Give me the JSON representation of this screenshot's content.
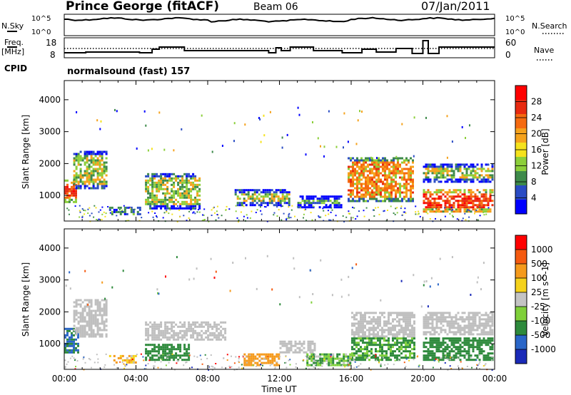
{
  "header": {
    "station": "Prince George (fitACF)",
    "beam": "Beam 06",
    "date": "07/Jan/2011"
  },
  "panels": {
    "nsky_label": "N.Sky",
    "nsearch_label": "N.Search",
    "nsky_ticks": [
      "10^5",
      "10^0"
    ],
    "nsearch_ticks": [
      "10^5",
      "10^0"
    ],
    "freq_label_line1": "Freq.",
    "freq_label_line2": "[MHz]",
    "nave_label": "Nave",
    "freq_ticks": [
      "18",
      "8"
    ],
    "nave_ticks": [
      "60",
      "0"
    ],
    "cpid_label": "CPID",
    "cpid_value": "normalsound (fast) 157"
  },
  "colors": {
    "power_scale": [
      "#0000ff",
      "#2a4cc4",
      "#3e8a4a",
      "#8ccf3a",
      "#f5e21c",
      "#f5a21c",
      "#f56a10",
      "#e82a10",
      "#ff0000"
    ],
    "velocity_scale": [
      "#1a2ab8",
      "#2a66c8",
      "#2e8a3c",
      "#7fd03a",
      "#c4c4c4",
      "#f5d21c",
      "#f59a1c",
      "#f55a10",
      "#ff0000"
    ],
    "ground_scatter": "#bfbfbf"
  },
  "chart_data": [
    {
      "type": "heatmap",
      "title": "Power",
      "xlabel": "Time UT",
      "ylabel": "Slant Range [km]",
      "x_ticks": [
        "00:00",
        "04:00",
        "08:00",
        "12:00",
        "16:00",
        "20:00",
        "00:00"
      ],
      "y_ticks": [
        "1000",
        "2000",
        "3000",
        "4000"
      ],
      "ylim": [
        200,
        4600
      ],
      "colorbar": {
        "label": "Power [dB]",
        "ticks": [
          "28",
          "24",
          "20",
          "16",
          "12",
          "8",
          "4"
        ]
      },
      "bands": [
        {
          "t": [
            0.0,
            0.7
          ],
          "r": [
            800,
            1500
          ],
          "v": 24
        },
        {
          "t": [
            0.5,
            2.3
          ],
          "r": [
            1200,
            2400
          ],
          "v": 14
        },
        {
          "t": [
            2.5,
            4.2
          ],
          "r": [
            400,
            650
          ],
          "v": 18
        },
        {
          "t": [
            4.5,
            7.5
          ],
          "r": [
            600,
            1700
          ],
          "v": 14
        },
        {
          "t": [
            9.5,
            12.5
          ],
          "r": [
            700,
            1200
          ],
          "v": 14
        },
        {
          "t": [
            13.0,
            15.5
          ],
          "r": [
            600,
            1000
          ],
          "v": 10
        },
        {
          "t": [
            15.8,
            19.5
          ],
          "r": [
            800,
            2200
          ],
          "v": 20
        },
        {
          "t": [
            20.0,
            23.9
          ],
          "r": [
            500,
            1200
          ],
          "v": 26
        },
        {
          "t": [
            20.0,
            23.9
          ],
          "r": [
            1400,
            2000
          ],
          "v": 14
        }
      ]
    },
    {
      "type": "heatmap",
      "title": "Velocity",
      "xlabel": "Time UT",
      "ylabel": "Slant Range [km]",
      "x_ticks": [
        "00:00",
        "04:00",
        "08:00",
        "12:00",
        "16:00",
        "20:00",
        "00:00"
      ],
      "y_ticks": [
        "1000",
        "2000",
        "3000",
        "4000"
      ],
      "ylim": [
        200,
        4600
      ],
      "colorbar": {
        "label": "Velocity [m s^-1]",
        "ticks": [
          "1000",
          "500",
          "100",
          "25",
          "-25",
          "-100",
          "-500",
          "-1000"
        ]
      },
      "bands": [
        {
          "t": [
            0.0,
            0.8
          ],
          "r": [
            700,
            1500
          ],
          "v": -500
        },
        {
          "t": [
            0.5,
            2.3
          ],
          "r": [
            1200,
            2400
          ],
          "v": 0
        },
        {
          "t": [
            2.5,
            4.0
          ],
          "r": [
            400,
            650
          ],
          "v": 100
        },
        {
          "t": [
            4.5,
            7.0
          ],
          "r": [
            500,
            1000
          ],
          "v": -300
        },
        {
          "t": [
            4.5,
            9.0
          ],
          "r": [
            1100,
            1700
          ],
          "v": 0
        },
        {
          "t": [
            10.0,
            12.0
          ],
          "r": [
            300,
            700
          ],
          "v": 200
        },
        {
          "t": [
            12.0,
            14.0
          ],
          "r": [
            700,
            1100
          ],
          "v": 0
        },
        {
          "t": [
            13.5,
            16.0
          ],
          "r": [
            300,
            700
          ],
          "v": -100
        },
        {
          "t": [
            16.0,
            19.5
          ],
          "r": [
            1200,
            2000
          ],
          "v": 0
        },
        {
          "t": [
            16.0,
            19.5
          ],
          "r": [
            500,
            1200
          ],
          "v": -150
        },
        {
          "t": [
            20.0,
            23.9
          ],
          "r": [
            500,
            1200
          ],
          "v": -200
        },
        {
          "t": [
            20.0,
            23.9
          ],
          "r": [
            1300,
            2000
          ],
          "v": 0
        }
      ]
    }
  ]
}
